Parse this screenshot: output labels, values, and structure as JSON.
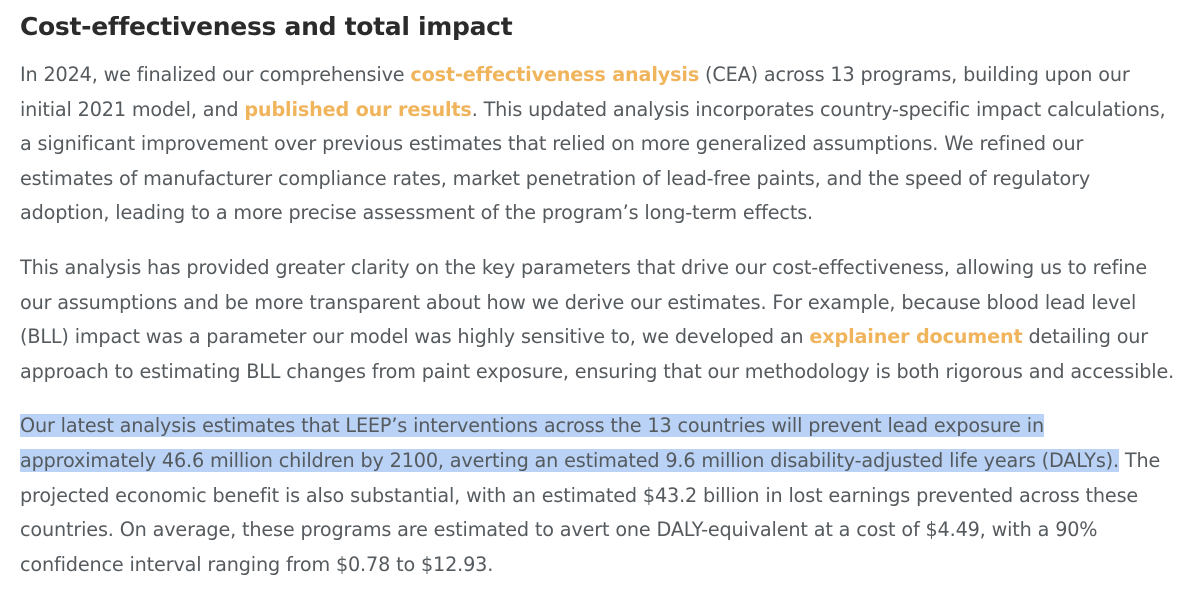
{
  "heading": "Cost-effectiveness and total impact",
  "colors": {
    "link": "#f0b55c",
    "selection": "#b9d2f5",
    "text": "#555a5e",
    "heading": "#2b2b2b"
  },
  "paragraph1": {
    "t1": "In 2024, we finalized our comprehensive ",
    "link1": "cost-effectiveness analysis",
    "t2": " (CEA) across 13 programs, building upon our initial 2021 model, and ",
    "link2": "published our results",
    "t3": ". This updated analysis incorporates country-specific impact calculations, a significant improvement over previous estimates that relied on more generalized assumptions. We refined our estimates of manufacturer compliance rates, market penetration of lead-free paints, and the speed of regulatory adoption, leading to a more precise assessment of the program’s long-term effects."
  },
  "paragraph2": {
    "t1": "This analysis has provided greater clarity on the key parameters that drive our cost-effectiveness, allowing us to refine our assumptions and be more transparent about how we derive our estimates. For example, because blood lead level (BLL) impact was a parameter our model was highly sensitive to, we developed an ",
    "link1": "explainer document",
    "t2": " detailing our approach to estimating BLL changes from paint exposure, ensuring that our methodology is both rigorous and accessible."
  },
  "paragraph3": {
    "highlighted": "Our latest analysis estimates that LEEP’s interventions across the 13 countries will prevent lead exposure in approximately 46.6 million children by 2100, averting an estimated 9.6 million disability-adjusted life years (DALYs).",
    "t1": " The projected economic benefit is also substantial, with an estimated $43.2 billion in lost earnings prevented across these countries. On average, these programs are estimated to avert one DALY-equivalent at a cost of $4.49, with a 90% confidence interval ranging from $0.78 to $12.93."
  }
}
